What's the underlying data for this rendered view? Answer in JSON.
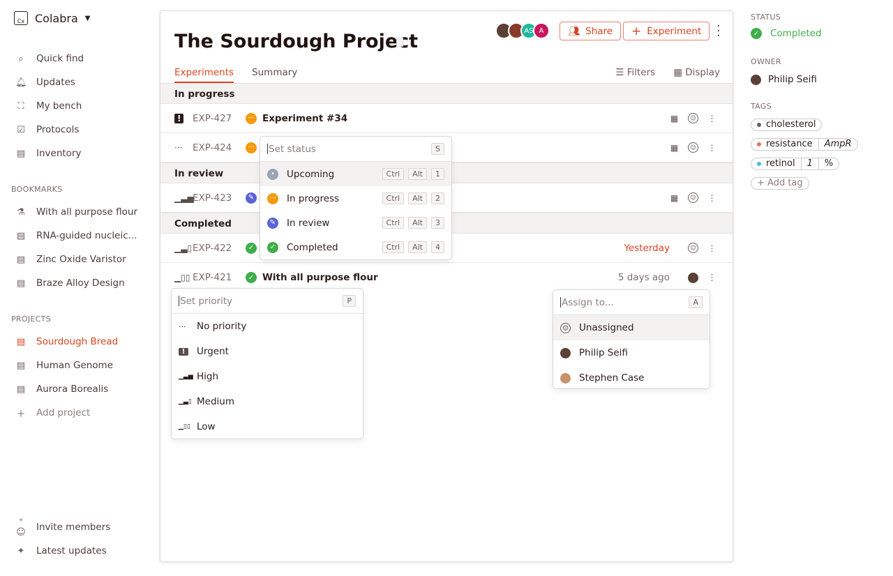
{
  "app": {
    "name": "Colabra"
  },
  "nav": [
    {
      "label": "Quick find",
      "icon": "search-icon"
    },
    {
      "label": "Updates",
      "icon": "bell-icon"
    },
    {
      "label": "My bench",
      "icon": "bench-icon"
    },
    {
      "label": "Protocols",
      "icon": "clipboard-icon"
    },
    {
      "label": "Inventory",
      "icon": "inventory-icon"
    }
  ],
  "bookmarks": {
    "title": "BOOKMARKS",
    "items": [
      "With all purpose flour",
      "RNA-guided nucleic...",
      "Zinc Oxide Varistor",
      "Braze Alloy Design"
    ]
  },
  "projects": {
    "title": "PROJECTS",
    "items": [
      "Sourdough Bread",
      "Human Genome",
      "Aurora Borealis"
    ],
    "add": "Add project",
    "active": "Sourdough Bread"
  },
  "footer": {
    "invite": "Invite members",
    "latest": "Latest updates"
  },
  "header": {
    "title": "The Sourdough Project",
    "avatars": [
      "AS",
      "A"
    ],
    "share": "Share",
    "experiment": "Experiment"
  },
  "tabs": [
    "Experiments",
    "Summary"
  ],
  "tools": {
    "filters": "Filters",
    "display": "Display"
  },
  "groups": {
    "progress": "In progress",
    "review": "In review",
    "completed": "Completed"
  },
  "rows": [
    {
      "id": "EXP-427",
      "title": "Experiment #34",
      "priority": "urgent",
      "status": "in-progress"
    },
    {
      "id": "EXP-424",
      "title": "",
      "priority": "none",
      "status": "in-progress"
    },
    {
      "id": "EXP-423",
      "title": "",
      "priority": "high",
      "status": "in-review"
    },
    {
      "id": "EXP-422",
      "title": "",
      "priority": "medium",
      "status": "completed",
      "date": "Yesterday"
    },
    {
      "id": "EXP-421",
      "title": "With all purpose flour",
      "priority": "low",
      "status": "completed",
      "date": "5 days ago"
    }
  ],
  "status_menu": {
    "placeholder": "Set status",
    "key": "S",
    "items": [
      {
        "label": "Upcoming",
        "keys": [
          "Ctrl",
          "Alt",
          "1"
        ]
      },
      {
        "label": "In progress",
        "keys": [
          "Ctrl",
          "Alt",
          "2"
        ]
      },
      {
        "label": "In review",
        "keys": [
          "Ctrl",
          "Alt",
          "3"
        ]
      },
      {
        "label": "Completed",
        "keys": [
          "Ctrl",
          "Alt",
          "4"
        ]
      }
    ]
  },
  "priority_menu": {
    "placeholder": "Set priority",
    "key": "P",
    "items": [
      "No priority",
      "Urgent",
      "High",
      "Medium",
      "Low"
    ]
  },
  "assign_menu": {
    "placeholder": "Assign to...",
    "key": "A",
    "items": [
      "Unassigned",
      "Philip Seifi",
      "Stephen Case"
    ]
  },
  "panel": {
    "status_label": "STATUS",
    "status": "Completed",
    "owner_label": "OWNER",
    "owner": "Philip Seifi",
    "tags_label": "TAGS",
    "tags": [
      {
        "name": "cholesterol",
        "color": "#6a5e5b",
        "values": []
      },
      {
        "name": "resistance",
        "color": "#e8735a",
        "values": [
          "AmpR"
        ]
      },
      {
        "name": "retinol",
        "color": "#4db8e8",
        "values": [
          "1",
          "%"
        ]
      }
    ],
    "add_tag": "Add tag"
  },
  "colors": {
    "accent": "#d8431f",
    "in_progress": "#f59a0c",
    "in_review": "#5b63d6",
    "completed": "#3fae4a",
    "upcoming": "#9aa5b4"
  }
}
